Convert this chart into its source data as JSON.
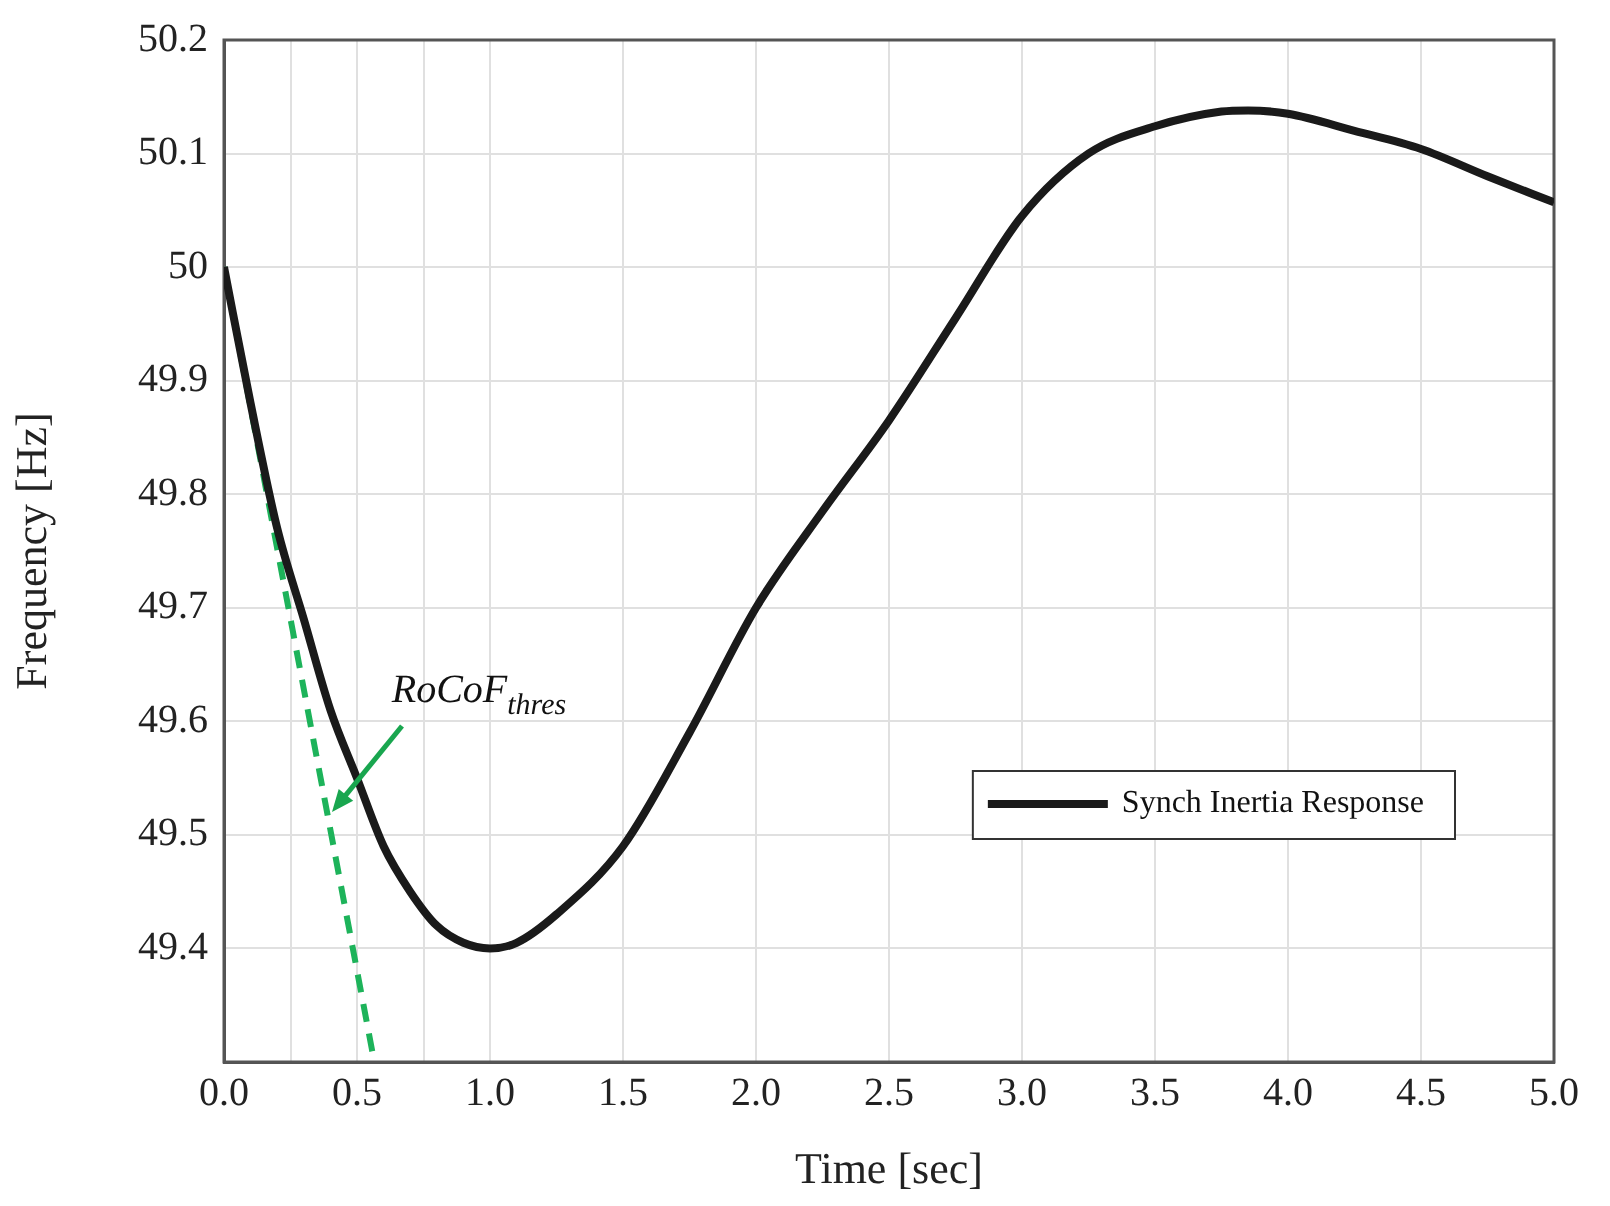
{
  "chart_data": {
    "type": "line",
    "xlabel": "Time [sec]",
    "ylabel": "Frequency [Hz]",
    "xlim": [
      0,
      5
    ],
    "xticks": [
      {
        "value": 0,
        "label": "0.0"
      },
      {
        "value": 0.25,
        "label": null
      },
      {
        "value": 0.5,
        "label": "0.5"
      },
      {
        "value": 0.75,
        "label": null
      },
      {
        "value": 1,
        "label": "1.0"
      },
      {
        "value": 1.5,
        "label": "1.5"
      },
      {
        "value": 2,
        "label": "2.0"
      },
      {
        "value": 2.5,
        "label": "2.5"
      },
      {
        "value": 3,
        "label": "3.0"
      },
      {
        "value": 3.5,
        "label": "3.5"
      },
      {
        "value": 4,
        "label": "4.0"
      },
      {
        "value": 4.5,
        "label": "4.5"
      },
      {
        "value": 5,
        "label": "5.0"
      }
    ],
    "ylim": [
      49.3,
      50.2
    ],
    "yticks": [
      49.4,
      49.5,
      49.6,
      49.7,
      49.8,
      49.9,
      50,
      50.1,
      50.2
    ],
    "grid": true,
    "legend": "bottom right",
    "marker": "none",
    "series": [
      {
        "name": "Synch Inertia Response",
        "color": "#1a1a1a",
        "line_style": "solid",
        "x": [
          0,
          0.1,
          0.2,
          0.3,
          0.4,
          0.5,
          0.6,
          0.7,
          0.8,
          0.9,
          1,
          1.1,
          1.25,
          1.5,
          1.75,
          2,
          2.25,
          2.5,
          2.75,
          3,
          3.25,
          3.5,
          3.75,
          3.85,
          4,
          4.25,
          4.5,
          4.75,
          5
        ],
        "values": [
          50,
          49.88,
          49.77,
          49.69,
          49.61,
          49.55,
          49.49,
          49.45,
          49.42,
          49.405,
          49.4,
          49.405,
          49.43,
          49.49,
          49.59,
          49.7,
          49.785,
          49.865,
          49.955,
          50.045,
          50.1,
          50.124,
          50.137,
          50.138,
          50.135,
          50.12,
          50.104,
          50.08,
          50.057
        ]
      },
      {
        "type": "line",
        "color": "#1db35a",
        "line_style": "dashed",
        "x": [
          0,
          0.565
        ],
        "values": [
          50,
          49.3
        ]
      }
    ],
    "annotations": [
      {
        "text": "RoCoF$_{thres}$",
        "x": 0.405,
        "y": 49.52
      }
    ]
  }
}
